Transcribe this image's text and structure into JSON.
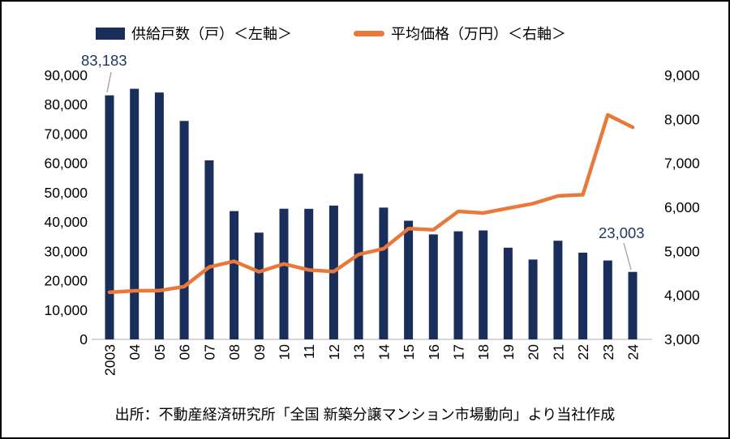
{
  "legend": {
    "supply_label": "供給戸数（戸）＜左軸＞",
    "price_label": "平均価格（万円）＜右軸＞"
  },
  "footnote": "出所：不動産経済研究所「全国 新築分譲マンション市場動向」より当社作成",
  "colors": {
    "bar": "#1A2E5C",
    "line": "#E8793B",
    "annotation_text": "#1F3864",
    "leader_line": "#A6A6A6",
    "axis_text": "#000000",
    "baseline": "#C9C9CF"
  },
  "chart_data": {
    "type": "bar+line combo",
    "categories": [
      "2003",
      "04",
      "05",
      "06",
      "07",
      "08",
      "09",
      "10",
      "11",
      "12",
      "13",
      "14",
      "15",
      "16",
      "17",
      "18",
      "19",
      "20",
      "21",
      "22",
      "23",
      "24"
    ],
    "series": [
      {
        "name": "供給戸数（戸）",
        "type": "bar",
        "axis": "left",
        "values": [
          83183,
          85429,
          84148,
          74463,
          61021,
          43733,
          36376,
          44535,
          44499,
          45602,
          56478,
          44913,
          40449,
          35772,
          36837,
          37132,
          31238,
          27228,
          33636,
          29569,
          26886,
          23003
        ]
      },
      {
        "name": "平均価格（万円）",
        "type": "line",
        "axis": "right",
        "values": [
          4069,
          4104,
          4108,
          4200,
          4644,
          4775,
          4535,
          4716,
          4578,
          4540,
          4929,
          5060,
          5518,
          5490,
          5908,
          5871,
          5980,
          6084,
          6260,
          6288,
          8101,
          7820
        ]
      }
    ],
    "left_axis": {
      "min": 0,
      "max": 90000,
      "step": 10000,
      "tick_labels": [
        "0",
        "10,000",
        "20,000",
        "30,000",
        "40,000",
        "50,000",
        "60,000",
        "70,000",
        "80,000",
        "90,000"
      ]
    },
    "right_axis": {
      "min": 3000,
      "max": 9000,
      "step": 1000,
      "tick_labels": [
        "3,000",
        "4,000",
        "5,000",
        "6,000",
        "7,000",
        "8,000",
        "9,000"
      ]
    },
    "annotations": [
      {
        "index": 0,
        "text": "83,183"
      },
      {
        "index": 21,
        "text": "23,003"
      }
    ],
    "grid": false,
    "legend_position": "top"
  }
}
